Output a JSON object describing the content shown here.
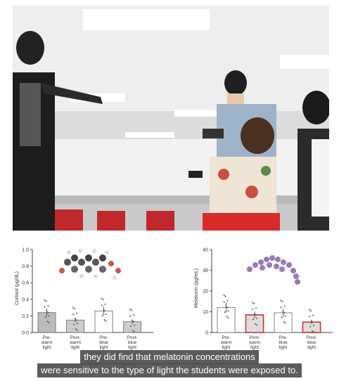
{
  "photo": {
    "description_icon": "classroom-photo"
  },
  "charts": {
    "cortisol": {
      "ylabel": "Cortisol (μg/dL)",
      "yticks": [
        "0.0",
        "0.2",
        "0.4",
        "0.6",
        "0.8",
        "1.0"
      ],
      "categories": [
        {
          "l1": "Pre-",
          "l2": "warm",
          "l3": "light"
        },
        {
          "l1": "Post-",
          "l2": "warm",
          "l3": "light"
        },
        {
          "l1": "Pre-",
          "l2": "blue",
          "l3": "light"
        },
        {
          "l1": "Post-",
          "l2": "blue",
          "l3": "light"
        }
      ]
    },
    "melatonin": {
      "ylabel": "Melatonin (pg/mL)",
      "yticks": [
        "0",
        "10",
        "20",
        "30",
        "40"
      ],
      "categories": [
        {
          "l1": "Pre-",
          "l2": "warm",
          "l3": "light"
        },
        {
          "l1": "Post-",
          "l2": "warm",
          "l3": "light"
        },
        {
          "l1": "Pre-",
          "l2": "blue",
          "l3": "light"
        },
        {
          "l1": "Post-",
          "l2": "blue",
          "l3": "light"
        }
      ]
    }
  },
  "chart_data": [
    {
      "type": "bar",
      "ylabel": "Cortisol (μg/dL)",
      "ylim": [
        0,
        1.0
      ],
      "categories": [
        "Pre-warm light",
        "Post-warm light",
        "Pre-blue light",
        "Post-blue light"
      ],
      "values": [
        0.24,
        0.15,
        0.26,
        0.13
      ],
      "highlight": [
        "#bbbbbb",
        "#cccccc",
        "#ffffff",
        "#cccccc"
      ]
    },
    {
      "type": "bar",
      "ylabel": "Melatonin (pg/mL)",
      "ylim": [
        0,
        40
      ],
      "categories": [
        "Pre-warm light",
        "Post-warm light",
        "Pre-blue light",
        "Post-blue light"
      ],
      "values": [
        12,
        8.5,
        9.5,
        5
      ],
      "highlight": [
        "#ffffff",
        "#e05050",
        "#ffffff",
        "#e05050"
      ]
    }
  ],
  "caption": {
    "line1": "they did find that melatonin concentrations",
    "line2": "were sensitive to the type of light the students were exposed to."
  }
}
